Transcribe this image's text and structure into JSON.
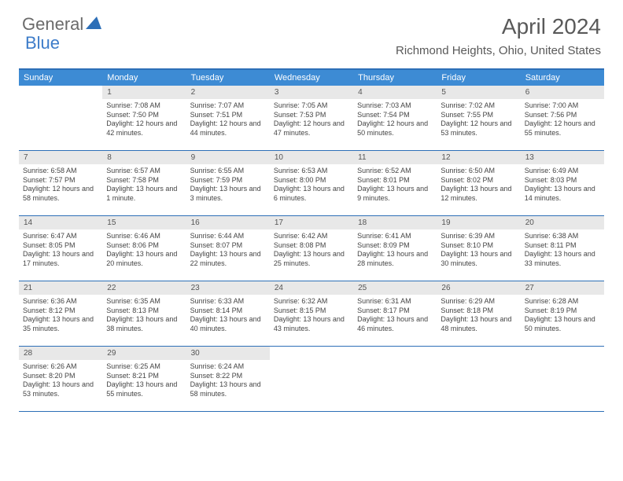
{
  "logo": {
    "part1": "General",
    "part2": "Blue"
  },
  "title": "April 2024",
  "location": "Richmond Heights, Ohio, United States",
  "colors": {
    "header_bg": "#3d8bd4",
    "border": "#2d6fb7",
    "daynum_bg": "#e8e8e8",
    "text": "#444444",
    "title": "#595959"
  },
  "dow": [
    "Sunday",
    "Monday",
    "Tuesday",
    "Wednesday",
    "Thursday",
    "Friday",
    "Saturday"
  ],
  "weeks": [
    [
      {
        "n": "",
        "empty": true
      },
      {
        "n": "1",
        "sr": "Sunrise: 7:08 AM",
        "ss": "Sunset: 7:50 PM",
        "dl": "Daylight: 12 hours and 42 minutes."
      },
      {
        "n": "2",
        "sr": "Sunrise: 7:07 AM",
        "ss": "Sunset: 7:51 PM",
        "dl": "Daylight: 12 hours and 44 minutes."
      },
      {
        "n": "3",
        "sr": "Sunrise: 7:05 AM",
        "ss": "Sunset: 7:53 PM",
        "dl": "Daylight: 12 hours and 47 minutes."
      },
      {
        "n": "4",
        "sr": "Sunrise: 7:03 AM",
        "ss": "Sunset: 7:54 PM",
        "dl": "Daylight: 12 hours and 50 minutes."
      },
      {
        "n": "5",
        "sr": "Sunrise: 7:02 AM",
        "ss": "Sunset: 7:55 PM",
        "dl": "Daylight: 12 hours and 53 minutes."
      },
      {
        "n": "6",
        "sr": "Sunrise: 7:00 AM",
        "ss": "Sunset: 7:56 PM",
        "dl": "Daylight: 12 hours and 55 minutes."
      }
    ],
    [
      {
        "n": "7",
        "sr": "Sunrise: 6:58 AM",
        "ss": "Sunset: 7:57 PM",
        "dl": "Daylight: 12 hours and 58 minutes."
      },
      {
        "n": "8",
        "sr": "Sunrise: 6:57 AM",
        "ss": "Sunset: 7:58 PM",
        "dl": "Daylight: 13 hours and 1 minute."
      },
      {
        "n": "9",
        "sr": "Sunrise: 6:55 AM",
        "ss": "Sunset: 7:59 PM",
        "dl": "Daylight: 13 hours and 3 minutes."
      },
      {
        "n": "10",
        "sr": "Sunrise: 6:53 AM",
        "ss": "Sunset: 8:00 PM",
        "dl": "Daylight: 13 hours and 6 minutes."
      },
      {
        "n": "11",
        "sr": "Sunrise: 6:52 AM",
        "ss": "Sunset: 8:01 PM",
        "dl": "Daylight: 13 hours and 9 minutes."
      },
      {
        "n": "12",
        "sr": "Sunrise: 6:50 AM",
        "ss": "Sunset: 8:02 PM",
        "dl": "Daylight: 13 hours and 12 minutes."
      },
      {
        "n": "13",
        "sr": "Sunrise: 6:49 AM",
        "ss": "Sunset: 8:03 PM",
        "dl": "Daylight: 13 hours and 14 minutes."
      }
    ],
    [
      {
        "n": "14",
        "sr": "Sunrise: 6:47 AM",
        "ss": "Sunset: 8:05 PM",
        "dl": "Daylight: 13 hours and 17 minutes."
      },
      {
        "n": "15",
        "sr": "Sunrise: 6:46 AM",
        "ss": "Sunset: 8:06 PM",
        "dl": "Daylight: 13 hours and 20 minutes."
      },
      {
        "n": "16",
        "sr": "Sunrise: 6:44 AM",
        "ss": "Sunset: 8:07 PM",
        "dl": "Daylight: 13 hours and 22 minutes."
      },
      {
        "n": "17",
        "sr": "Sunrise: 6:42 AM",
        "ss": "Sunset: 8:08 PM",
        "dl": "Daylight: 13 hours and 25 minutes."
      },
      {
        "n": "18",
        "sr": "Sunrise: 6:41 AM",
        "ss": "Sunset: 8:09 PM",
        "dl": "Daylight: 13 hours and 28 minutes."
      },
      {
        "n": "19",
        "sr": "Sunrise: 6:39 AM",
        "ss": "Sunset: 8:10 PM",
        "dl": "Daylight: 13 hours and 30 minutes."
      },
      {
        "n": "20",
        "sr": "Sunrise: 6:38 AM",
        "ss": "Sunset: 8:11 PM",
        "dl": "Daylight: 13 hours and 33 minutes."
      }
    ],
    [
      {
        "n": "21",
        "sr": "Sunrise: 6:36 AM",
        "ss": "Sunset: 8:12 PM",
        "dl": "Daylight: 13 hours and 35 minutes."
      },
      {
        "n": "22",
        "sr": "Sunrise: 6:35 AM",
        "ss": "Sunset: 8:13 PM",
        "dl": "Daylight: 13 hours and 38 minutes."
      },
      {
        "n": "23",
        "sr": "Sunrise: 6:33 AM",
        "ss": "Sunset: 8:14 PM",
        "dl": "Daylight: 13 hours and 40 minutes."
      },
      {
        "n": "24",
        "sr": "Sunrise: 6:32 AM",
        "ss": "Sunset: 8:15 PM",
        "dl": "Daylight: 13 hours and 43 minutes."
      },
      {
        "n": "25",
        "sr": "Sunrise: 6:31 AM",
        "ss": "Sunset: 8:17 PM",
        "dl": "Daylight: 13 hours and 46 minutes."
      },
      {
        "n": "26",
        "sr": "Sunrise: 6:29 AM",
        "ss": "Sunset: 8:18 PM",
        "dl": "Daylight: 13 hours and 48 minutes."
      },
      {
        "n": "27",
        "sr": "Sunrise: 6:28 AM",
        "ss": "Sunset: 8:19 PM",
        "dl": "Daylight: 13 hours and 50 minutes."
      }
    ],
    [
      {
        "n": "28",
        "sr": "Sunrise: 6:26 AM",
        "ss": "Sunset: 8:20 PM",
        "dl": "Daylight: 13 hours and 53 minutes."
      },
      {
        "n": "29",
        "sr": "Sunrise: 6:25 AM",
        "ss": "Sunset: 8:21 PM",
        "dl": "Daylight: 13 hours and 55 minutes."
      },
      {
        "n": "30",
        "sr": "Sunrise: 6:24 AM",
        "ss": "Sunset: 8:22 PM",
        "dl": "Daylight: 13 hours and 58 minutes."
      },
      {
        "n": "",
        "empty": true
      },
      {
        "n": "",
        "empty": true
      },
      {
        "n": "",
        "empty": true
      },
      {
        "n": "",
        "empty": true
      }
    ]
  ]
}
